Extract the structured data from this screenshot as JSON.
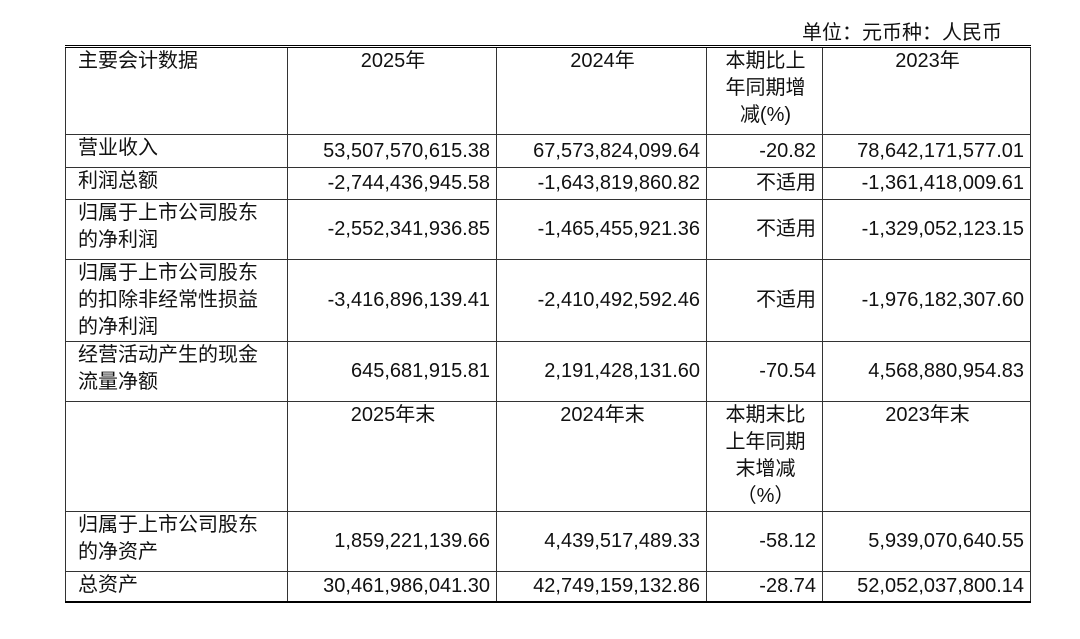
{
  "unit_note": "单位：元币种：人民币",
  "table": {
    "header": [
      "主要会计数据",
      "2025年",
      "2024年",
      "本期比上年同期增减(%)",
      "2023年"
    ],
    "rows": [
      [
        "营业收入",
        "53,507,570,615.38",
        "67,573,824,099.64",
        "-20.82",
        "78,642,171,577.01"
      ],
      [
        "利润总额",
        "-2,744,436,945.58",
        "-1,643,819,860.82",
        "不适用",
        "-1,361,418,009.61"
      ],
      [
        "归属于上市公司股东的净利润",
        "-2,552,341,936.85",
        "-1,465,455,921.36",
        "不适用",
        "-1,329,052,123.15"
      ],
      [
        "归属于上市公司股东的扣除非经常性损益的净利润",
        "-3,416,896,139.41",
        "-2,410,492,592.46",
        "不适用",
        "-1,976,182,307.60"
      ],
      [
        "经营活动产生的现金流量净额",
        "645,681,915.81",
        "2,191,428,131.60",
        "-70.54",
        "4,568,880,954.83"
      ]
    ],
    "header2": [
      null,
      "2025年末",
      "2024年末",
      "本期末比上年同期末增减（%）",
      "2023年末"
    ],
    "rows2": [
      [
        "归属于上市公司股东的净资产",
        "1,859,221,139.66",
        "4,439,517,489.33",
        "-58.12",
        "5,939,070,640.55"
      ],
      [
        "总资产",
        "30,461,986,041.30",
        "42,749,159,132.86",
        "-28.74",
        "52,052,037,800.14"
      ]
    ]
  }
}
